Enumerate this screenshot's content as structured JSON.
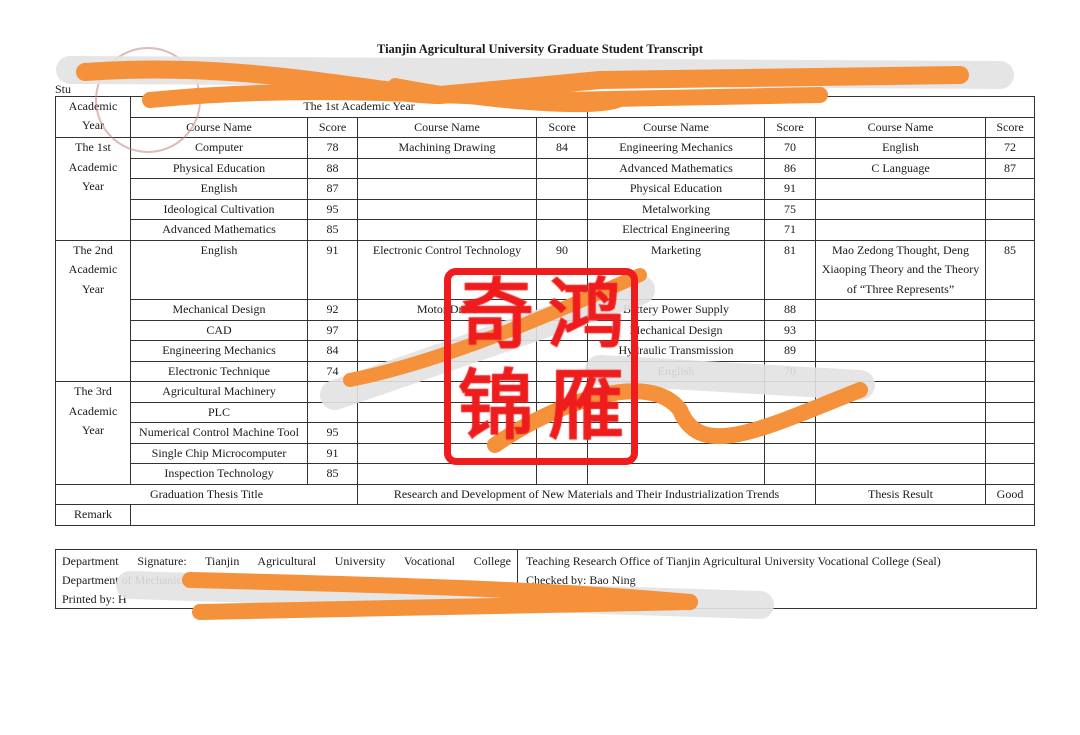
{
  "document": {
    "title": "Tianjin Agricultural University Graduate Student Transcript",
    "student_label_partial": "Stu",
    "headers": {
      "academic_year": "Academic Year",
      "year_group_1": "The 1st Academic Year",
      "course_name": "Course Name",
      "score": "Score"
    },
    "years": [
      {
        "label": "The 1st Academic Year",
        "rows": [
          [
            [
              "Computer",
              "78"
            ],
            [
              "Machining Drawing",
              "84"
            ],
            [
              "Engineering Mechanics",
              "70"
            ],
            [
              "English",
              "72"
            ]
          ],
          [
            [
              "Physical Education",
              "88"
            ],
            [
              "",
              ""
            ],
            [
              "Advanced Mathematics",
              "86"
            ],
            [
              "C Language",
              "87"
            ]
          ],
          [
            [
              "English",
              "87"
            ],
            [
              "",
              ""
            ],
            [
              "Physical Education",
              "91"
            ],
            [
              "",
              ""
            ]
          ],
          [
            [
              "Ideological Cultivation",
              "95"
            ],
            [
              "",
              ""
            ],
            [
              "Metalworking",
              "75"
            ],
            [
              "",
              ""
            ]
          ],
          [
            [
              "Advanced Mathematics",
              "85"
            ],
            [
              "",
              ""
            ],
            [
              "Electrical Engineering",
              "71"
            ],
            [
              "",
              ""
            ]
          ]
        ]
      },
      {
        "label": "The 2nd Academic Year",
        "rows": [
          [
            [
              "English",
              "91"
            ],
            [
              "Electronic Control Technology",
              "90"
            ],
            [
              "Marketing",
              "81"
            ],
            [
              "Mao Zedong Thought, Deng Xiaoping Theory and the Theory of “Three Represents”",
              "85"
            ]
          ],
          [
            [
              "Mechanical Design",
              "92"
            ],
            [
              "Motor Drive",
              ""
            ],
            [
              "Battery Power Supply",
              "88"
            ],
            [
              "",
              ""
            ]
          ],
          [
            [
              "CAD",
              "97"
            ],
            [
              "",
              ""
            ],
            [
              "Mechanical Design",
              "93"
            ],
            [
              "",
              ""
            ]
          ],
          [
            [
              "Engineering Mechanics",
              "84"
            ],
            [
              "",
              ""
            ],
            [
              "Hydraulic Transmission",
              "89"
            ],
            [
              "",
              ""
            ]
          ],
          [
            [
              "Electronic Technique",
              "74"
            ],
            [
              "",
              ""
            ],
            [
              "English",
              "70"
            ],
            [
              "",
              ""
            ]
          ]
        ]
      },
      {
        "label": "The 3rd Academic Year",
        "rows": [
          [
            [
              "Agricultural Machinery",
              ""
            ],
            [
              "",
              ""
            ],
            [
              "",
              ""
            ],
            [
              "",
              ""
            ]
          ],
          [
            [
              "PLC",
              ""
            ],
            [
              "",
              ""
            ],
            [
              "",
              ""
            ],
            [
              "",
              ""
            ]
          ],
          [
            [
              "Numerical Control Machine Tool",
              "95"
            ],
            [
              "",
              ""
            ],
            [
              "",
              ""
            ],
            [
              "",
              ""
            ]
          ],
          [
            [
              "Single Chip Microcomputer",
              "91"
            ],
            [
              "",
              ""
            ],
            [
              "",
              ""
            ],
            [
              "",
              ""
            ]
          ],
          [
            [
              "Inspection Technology",
              "85"
            ],
            [
              "",
              ""
            ],
            [
              "",
              ""
            ],
            [
              "",
              ""
            ]
          ]
        ]
      }
    ],
    "thesis": {
      "label": "Graduation Thesis Title",
      "title": "Research and Development of New Materials and Their Industrialization Trends",
      "result_label": "Thesis Result",
      "result": "Good"
    },
    "remark_label": "Remark",
    "footer": {
      "dept_signature": "Department Signature: Tianjin Agricultural University Vocational College",
      "dept_line2": "Department of Mechanical El",
      "printed_by": "Printed by: H",
      "office": "Teaching Research Office of Tianjin Agricultural University Vocational College (Seal)",
      "checked_by": "Checked by: Bao Ning"
    }
  },
  "watermark_stamp": {
    "text": [
      "奇",
      "鸿",
      "锦",
      "雁"
    ],
    "color": "#ee1c1c"
  },
  "redaction_color": "#f5913a"
}
